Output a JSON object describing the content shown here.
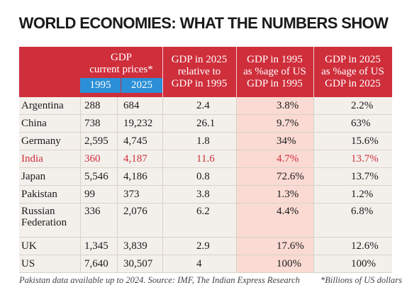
{
  "title": "WORLD ECONOMIES: WHAT THE NUMBERS SHOW",
  "headers": {
    "gdp_group": "GDP\ncurrent prices*",
    "year1": "1995",
    "year2": "2025",
    "col3": "GDP in 2025\nrelative to\nGDP in 1995",
    "col4": "GDP in 1995\nas %age of US\nGDP in 1995",
    "col5": "GDP in 2025\nas %age of US\nGDP in 2025"
  },
  "rows": [
    {
      "country": "Argentina",
      "gdp1995": "288",
      "gdp2025": "684",
      "ratio": "2.4",
      "pct1995": "3.8%",
      "pct2025": "2.2%"
    },
    {
      "country": "China",
      "gdp1995": "738",
      "gdp2025": "19,232",
      "ratio": "26.1",
      "pct1995": "9.7%",
      "pct2025": "63%"
    },
    {
      "country": "Germany",
      "gdp1995": "2,595",
      "gdp2025": "4,745",
      "ratio": "1.8",
      "pct1995": "34%",
      "pct2025": "15.6%"
    },
    {
      "country": "India",
      "gdp1995": "360",
      "gdp2025": "4,187",
      "ratio": "11.6",
      "pct1995": "4.7%",
      "pct2025": "13.7%"
    },
    {
      "country": "Japan",
      "gdp1995": "5,546",
      "gdp2025": "4,186",
      "ratio": "0.8",
      "pct1995": "72.6%",
      "pct2025": "13.7%"
    },
    {
      "country": "Pakistan",
      "gdp1995": "99",
      "gdp2025": "373",
      "ratio": "3.8",
      "pct1995": "1.3%",
      "pct2025": "1.2%"
    },
    {
      "country": "Russian\nFederation",
      "gdp1995": "336",
      "gdp2025": "2,076",
      "ratio": "6.2",
      "pct1995": "4.4%",
      "pct2025": "6.8%"
    },
    {
      "country": "UK",
      "gdp1995": "1,345",
      "gdp2025": "3,839",
      "ratio": "2.9",
      "pct1995": "17.6%",
      "pct2025": "12.6%"
    },
    {
      "country": "US",
      "gdp1995": "7,640",
      "gdp2025": "30,507",
      "ratio": "4",
      "pct1995": "100%",
      "pct2025": "100%"
    }
  ],
  "footer": {
    "source": "Pakistan data available up to 2024. Source: IMF, The Indian Express Research",
    "note": "*Billions of US dollars"
  },
  "colors": {
    "header_red": "#cf2e3b",
    "year_blue": "#2a8fd6",
    "highlight_column": "#fadad3",
    "cell_bg": "#f3f0ec"
  }
}
